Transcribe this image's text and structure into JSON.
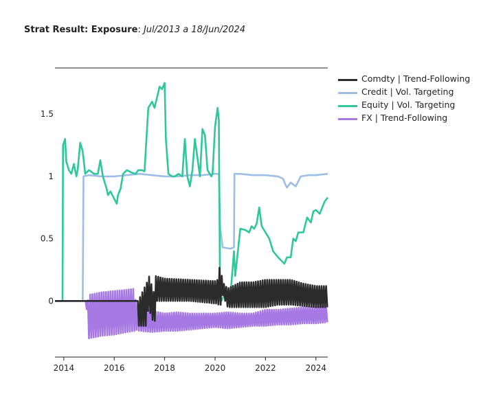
{
  "title": {
    "bold": "Strat Result: Exposure",
    "sep": ": ",
    "italic": "Jul/2013 a 18/Jun/2024"
  },
  "chart_data": {
    "type": "line",
    "title": "Strat Result: Exposure: Jul/2013 a 18/Jun/2024",
    "xlabel": "",
    "ylabel": "",
    "xlim": [
      2013.65,
      2024.47
    ],
    "ylim": [
      -0.45,
      1.87
    ],
    "x_ticks": [
      2014,
      2016,
      2018,
      2020,
      2022,
      2024
    ],
    "y_ticks": [
      0,
      0.5,
      1,
      1.5
    ],
    "x_tick_labels": [
      "2014",
      "2016",
      "2018",
      "2020",
      "2022",
      "2024"
    ],
    "y_tick_labels": [
      "0",
      "0.5",
      "1",
      "1.5"
    ],
    "grid": false,
    "legend_position": "right",
    "series": [
      {
        "name": "Comdty | Trend-Following",
        "color": "#2b2b2b",
        "style": "oscillating",
        "x": [
          2013.65,
          2016.9,
          2016.95,
          2017.3,
          2017.35,
          2017.6,
          2017.65,
          2018.0,
          2019.0,
          2020.0,
          2020.1,
          2020.2,
          2020.3,
          2020.5,
          2020.7,
          2021.0,
          2021.5,
          2022.0,
          2022.5,
          2023.0,
          2023.5,
          2024.0,
          2024.47
        ],
        "high": [
          0,
          0,
          0.0,
          0.15,
          0.22,
          0.05,
          0.2,
          0.18,
          0.17,
          0.16,
          0.17,
          0.3,
          0.15,
          0.1,
          0.12,
          0.15,
          0.15,
          0.17,
          0.17,
          0.17,
          0.14,
          0.12,
          0.12
        ],
        "low": [
          0,
          0,
          -0.2,
          -0.2,
          -0.05,
          -0.2,
          0.0,
          0.0,
          0.0,
          -0.02,
          -0.02,
          -0.05,
          0.05,
          -0.05,
          -0.05,
          -0.05,
          -0.05,
          -0.05,
          -0.03,
          -0.03,
          -0.04,
          -0.05,
          -0.05
        ]
      },
      {
        "name": "Credit | Vol. Targeting",
        "color": "#9dbde6",
        "x": [
          2013.65,
          2014.75,
          2014.78,
          2015.0,
          2015.5,
          2016.0,
          2016.5,
          2017.0,
          2017.5,
          2018.0,
          2018.5,
          2019.0,
          2019.5,
          2020.0,
          2020.15,
          2020.2,
          2020.3,
          2020.6,
          2020.75,
          2020.77,
          2021.0,
          2021.5,
          2022.0,
          2022.5,
          2022.7,
          2022.8,
          2022.85,
          2023.0,
          2023.2,
          2023.4,
          2023.7,
          2024.0,
          2024.47
        ],
        "y": [
          0,
          0,
          1.0,
          1.01,
          1.0,
          1.0,
          1.01,
          1.02,
          1.01,
          1.0,
          1.0,
          1.01,
          1.01,
          1.02,
          1.02,
          0.6,
          0.43,
          0.42,
          0.43,
          1.02,
          1.02,
          1.01,
          1.01,
          1.0,
          0.98,
          0.93,
          0.91,
          0.95,
          0.92,
          1.0,
          1.01,
          1.01,
          1.02
        ]
      },
      {
        "name": "Equity | Vol. Targeting",
        "color": "#2ec79a",
        "x": [
          2013.65,
          2013.95,
          2013.97,
          2014.05,
          2014.1,
          2014.2,
          2014.3,
          2014.4,
          2014.5,
          2014.55,
          2014.65,
          2014.75,
          2014.85,
          2015.0,
          2015.2,
          2015.35,
          2015.45,
          2015.55,
          2015.7,
          2015.75,
          2015.85,
          2016.0,
          2016.1,
          2016.15,
          2016.25,
          2016.35,
          2016.5,
          2016.7,
          2016.85,
          2016.95,
          2017.1,
          2017.2,
          2017.35,
          2017.5,
          2017.6,
          2017.8,
          2017.9,
          2018.0,
          2018.05,
          2018.15,
          2018.3,
          2018.4,
          2018.55,
          2018.7,
          2018.8,
          2018.9,
          2019.0,
          2019.1,
          2019.2,
          2019.4,
          2019.5,
          2019.6,
          2019.7,
          2019.85,
          2019.9,
          2020.0,
          2020.1,
          2020.15,
          2020.2,
          2020.25,
          2020.3,
          2020.4,
          2020.5,
          2020.6,
          2020.75,
          2020.8,
          2021.0,
          2021.2,
          2021.35,
          2021.45,
          2021.55,
          2021.65,
          2021.75,
          2021.85,
          2022.0,
          2022.15,
          2022.3,
          2022.5,
          2022.6,
          2022.75,
          2022.85,
          2023.0,
          2023.1,
          2023.2,
          2023.3,
          2023.5,
          2023.65,
          2023.8,
          2023.9,
          2024.0,
          2024.15,
          2024.25,
          2024.35,
          2024.47
        ],
        "y": [
          0,
          0,
          1.25,
          1.3,
          1.12,
          1.05,
          1.02,
          1.1,
          1.0,
          1.05,
          1.27,
          1.2,
          1.02,
          1.05,
          1.02,
          1.02,
          1.13,
          1.0,
          0.9,
          0.85,
          0.88,
          0.82,
          0.78,
          0.85,
          0.9,
          1.02,
          1.05,
          1.03,
          1.02,
          1.05,
          1.05,
          1.04,
          1.55,
          1.6,
          1.55,
          1.72,
          1.7,
          1.75,
          1.3,
          1.02,
          1.0,
          1.0,
          1.02,
          1.0,
          1.3,
          1.0,
          0.92,
          1.05,
          1.3,
          1.0,
          1.38,
          1.33,
          1.05,
          1.0,
          1.02,
          1.4,
          1.55,
          1.45,
          0.0,
          0.0,
          0.02,
          0.05,
          0.0,
          0.02,
          0.4,
          0.2,
          0.58,
          0.57,
          0.55,
          0.6,
          0.58,
          0.62,
          0.75,
          0.6,
          0.55,
          0.5,
          0.4,
          0.35,
          0.33,
          0.3,
          0.35,
          0.35,
          0.5,
          0.48,
          0.55,
          0.55,
          0.67,
          0.63,
          0.72,
          0.73,
          0.7,
          0.75,
          0.8,
          0.83
        ]
      },
      {
        "name": "FX | Trend-Following",
        "color": "#a678e3",
        "style": "oscillating",
        "x": [
          2013.65,
          2014.9,
          2014.95,
          2015.0,
          2015.5,
          2016.0,
          2016.5,
          2016.8,
          2016.85,
          2017.0,
          2017.5,
          2018.0,
          2018.5,
          2019.0,
          2019.5,
          2020.0,
          2020.5,
          2021.0,
          2021.5,
          2022.0,
          2022.5,
          2023.0,
          2023.5,
          2024.0,
          2024.47
        ],
        "high": [
          0,
          0,
          0.0,
          0.05,
          0.07,
          0.08,
          0.09,
          0.1,
          0.0,
          -0.05,
          -0.08,
          -0.1,
          -0.09,
          -0.1,
          -0.1,
          -0.1,
          -0.09,
          -0.1,
          -0.1,
          -0.07,
          -0.07,
          -0.06,
          -0.05,
          -0.05,
          -0.04
        ],
        "low": [
          0,
          0,
          -0.33,
          -0.3,
          -0.28,
          -0.27,
          -0.25,
          -0.24,
          -0.23,
          -0.24,
          -0.25,
          -0.24,
          -0.24,
          -0.23,
          -0.22,
          -0.21,
          -0.22,
          -0.21,
          -0.2,
          -0.2,
          -0.19,
          -0.19,
          -0.18,
          -0.18,
          -0.17
        ]
      }
    ]
  }
}
